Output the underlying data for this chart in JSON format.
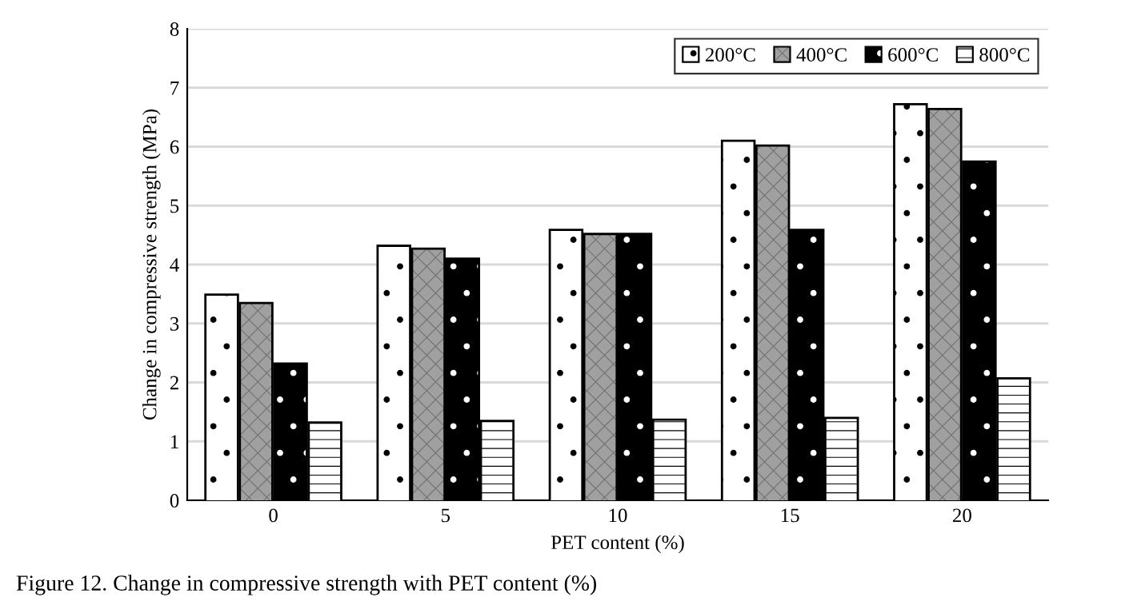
{
  "chart_data": {
    "type": "bar",
    "xlabel": "PET content (%)",
    "ylabel": "Change in compressive strength (MPa)",
    "categories": [
      "0",
      "5",
      "10",
      "15",
      "20"
    ],
    "series": [
      {
        "name": "200°C",
        "color": "#ffffff",
        "values": [
          3.47,
          4.3,
          4.57,
          6.08,
          6.7
        ]
      },
      {
        "name": "400°C",
        "color": "#a0a0a0",
        "values": [
          3.33,
          4.25,
          4.5,
          6.0,
          6.62
        ]
      },
      {
        "name": "600°C",
        "color": "#000000",
        "values": [
          2.3,
          4.08,
          4.5,
          4.57,
          5.73
        ]
      },
      {
        "name": "800°C",
        "color": "#ffffff",
        "values": [
          1.3,
          1.33,
          1.35,
          1.38,
          2.05
        ]
      }
    ],
    "ylim": [
      0,
      8
    ],
    "yticks": [
      0,
      1,
      2,
      3,
      4,
      5,
      6,
      7,
      8
    ],
    "grid": "y",
    "legend": "top right",
    "annotations": [
      "Figure 12. Change in compressive strength with PET content (%)"
    ]
  }
}
